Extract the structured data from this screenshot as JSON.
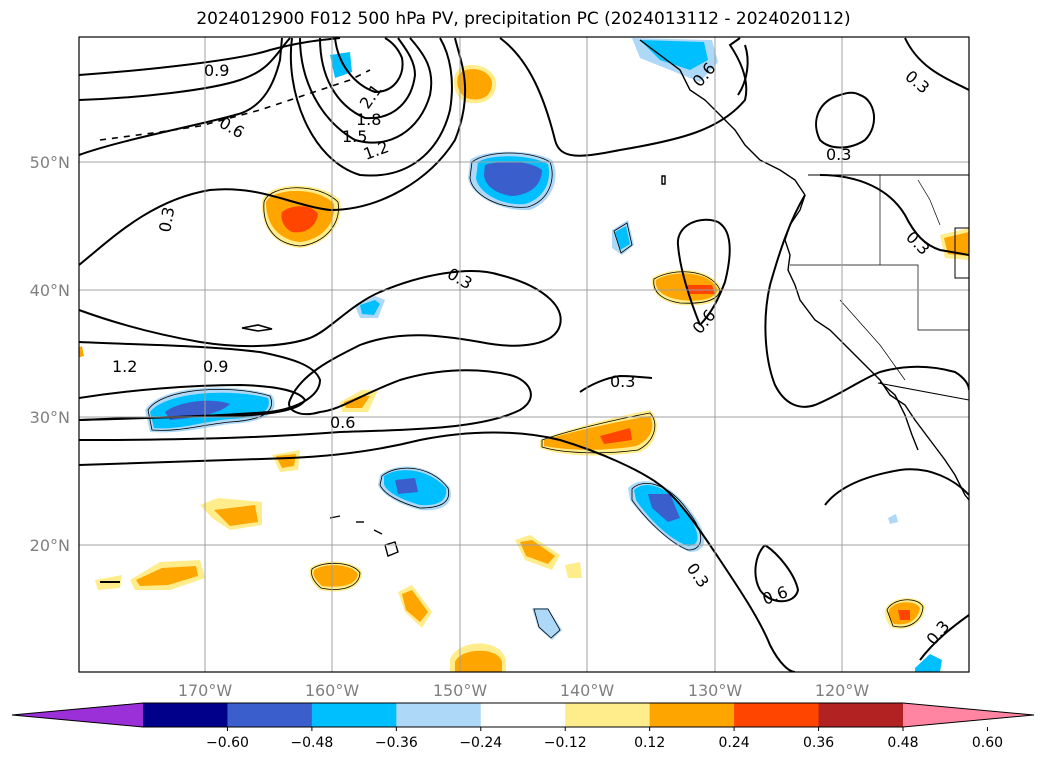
{
  "title": "2024012900 F012 500 hPa PV, precipitation PC (2024013112 - 2024020112)",
  "map": {
    "lat_labels": [
      "50°N",
      "40°N",
      "30°N",
      "20°N"
    ],
    "lon_labels": [
      "170°W",
      "160°W",
      "150°W",
      "140°W",
      "130°W",
      "120°W"
    ],
    "contour_labels": [
      "0.9",
      "0.6",
      "2.1",
      "1.8",
      "1.5",
      "1.2",
      "0.3",
      "0.3",
      "0.6",
      "0.3",
      "0.6",
      "0.3",
      "0.3",
      "1.2",
      "0.9",
      "0.3",
      "0.6",
      "0.3",
      "0.6",
      "0.3"
    ]
  },
  "colorbar": {
    "ticks": [
      "−0.60",
      "−0.48",
      "−0.36",
      "−0.24",
      "−0.12",
      "0.12",
      "0.24",
      "0.36",
      "0.48",
      "0.60"
    ],
    "colors": [
      "#9b30d9",
      "#00008b",
      "#3a5fcd",
      "#00bfff",
      "#add8f7",
      "#ffffff",
      "#ffec8b",
      "#ffa500",
      "#ff4500",
      "#b22222",
      "#ff85a2"
    ]
  }
}
